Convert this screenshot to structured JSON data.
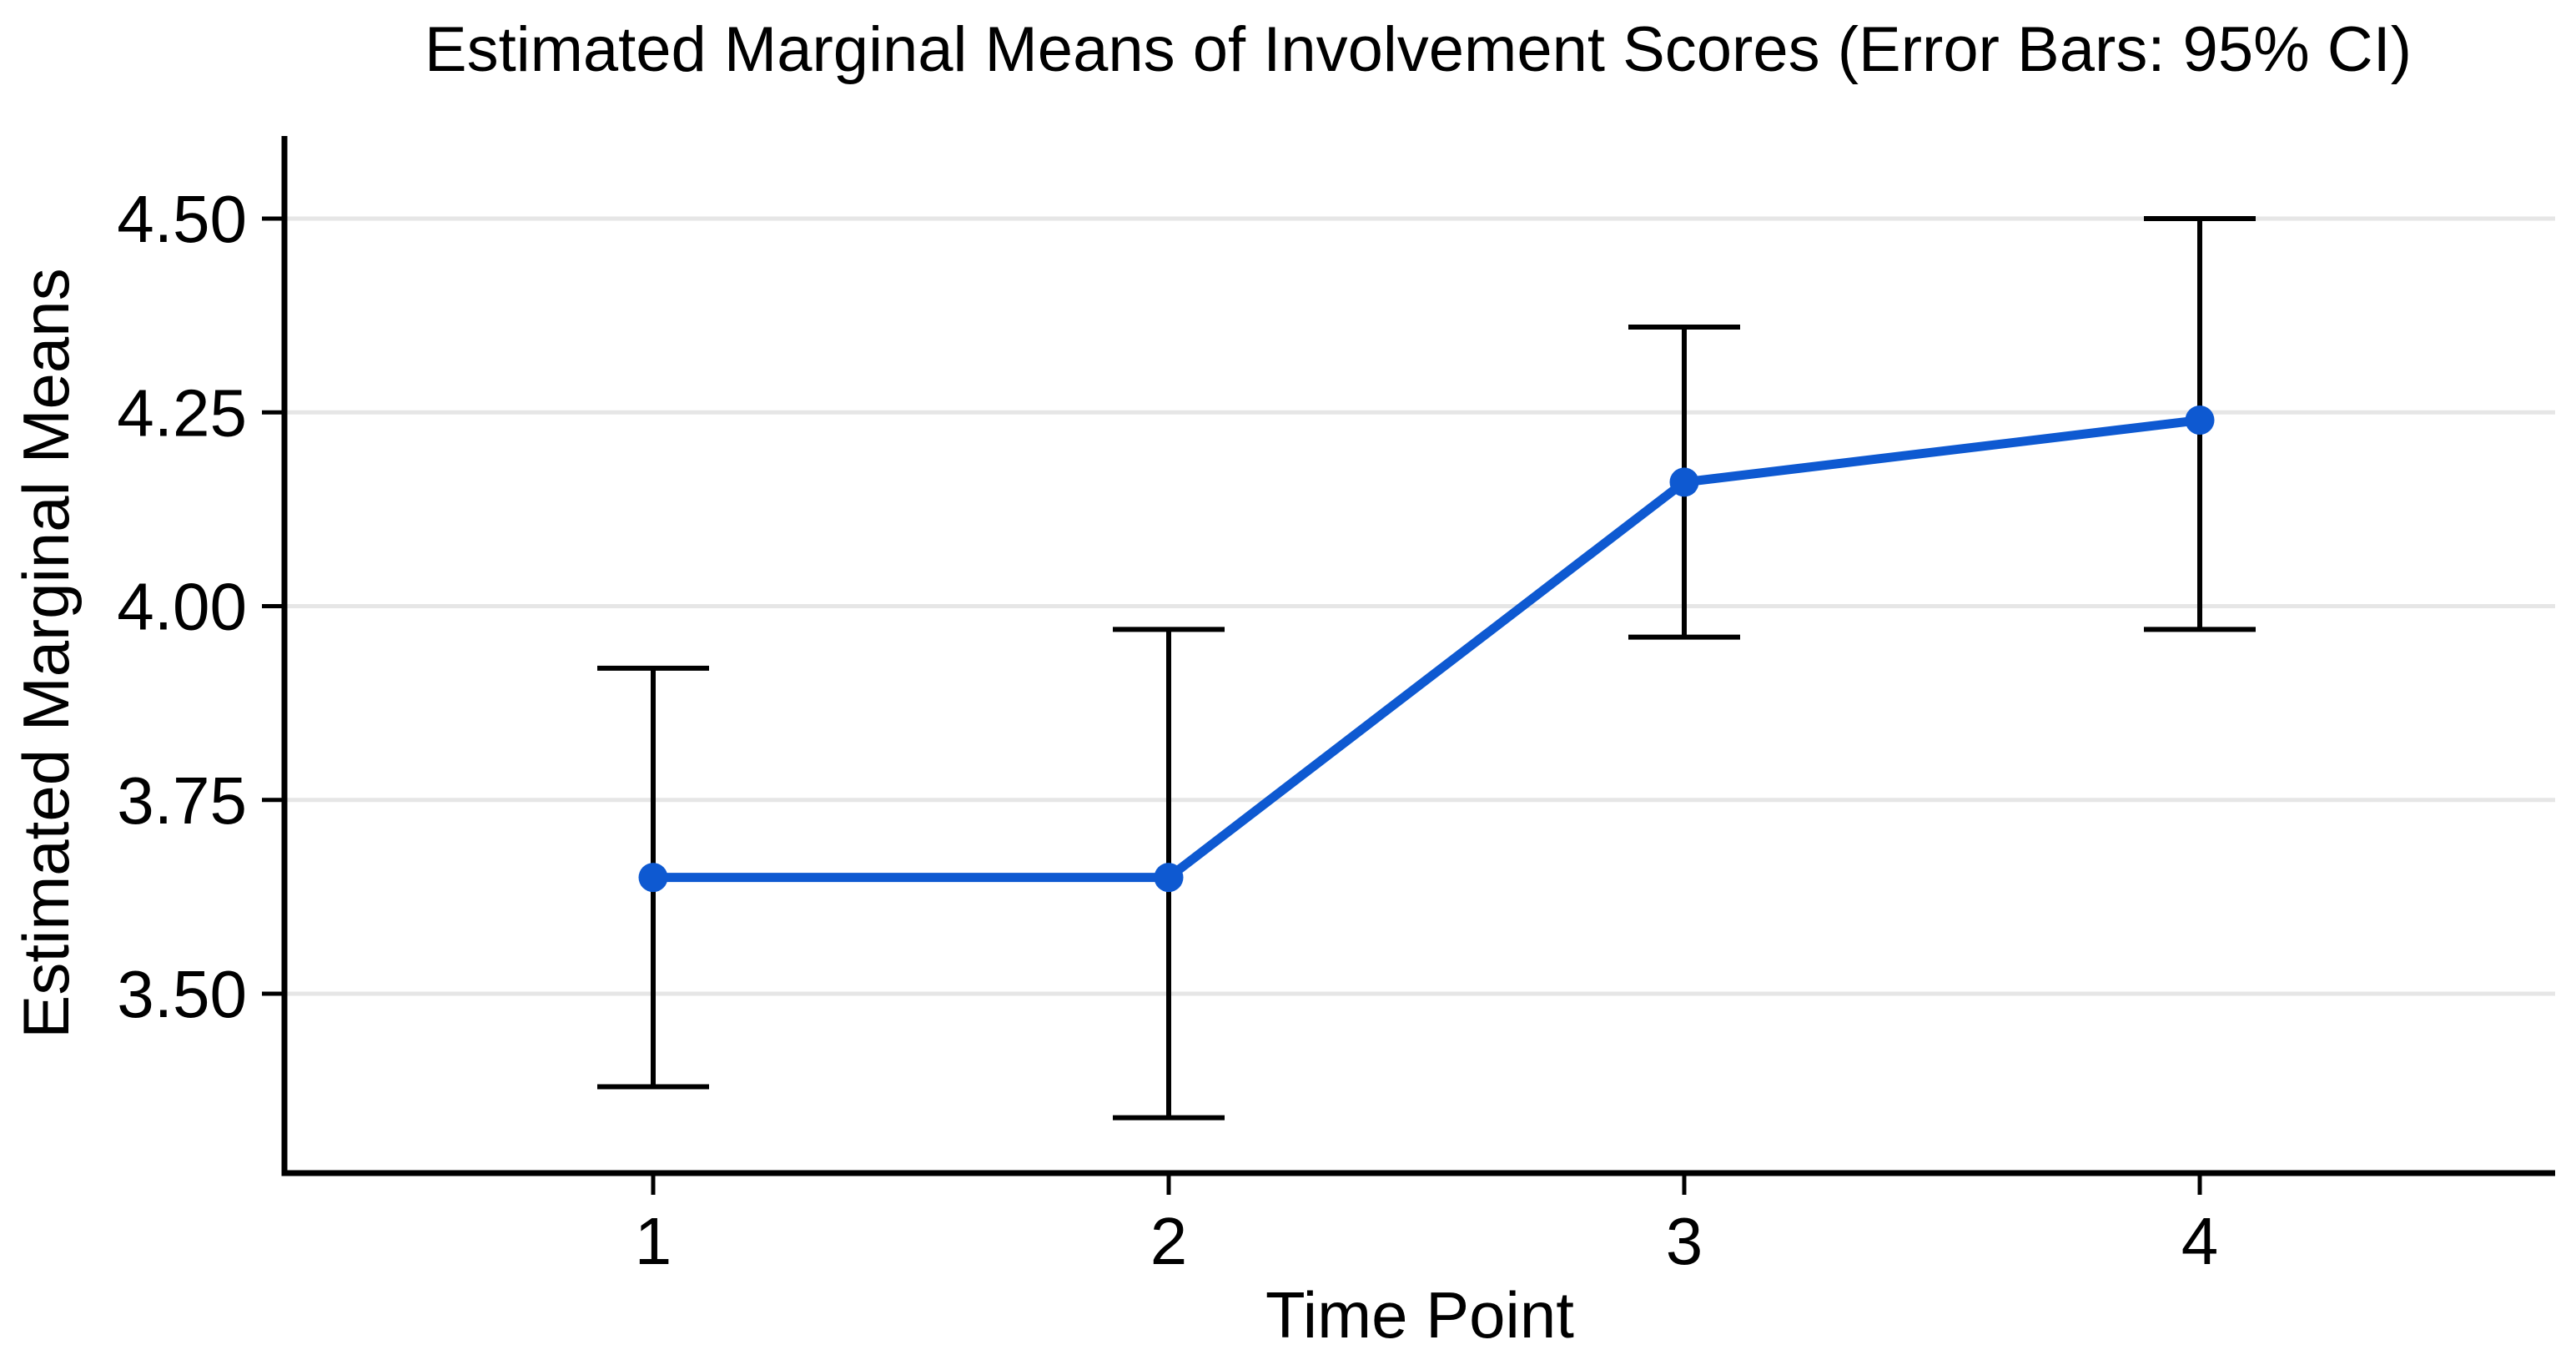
{
  "chart_data": {
    "type": "line",
    "title": "Estimated Marginal Means of Involvement Scores (Error Bars: 95% CI)",
    "xlabel": "Time Point",
    "ylabel": "Estimated Marginal Means",
    "categories": [
      "1",
      "2",
      "3",
      "4"
    ],
    "series": [
      {
        "name": "Estimated Marginal Means",
        "values": [
          3.65,
          3.65,
          4.16,
          4.24
        ],
        "ci_low": [
          3.38,
          3.34,
          3.96,
          3.97
        ],
        "ci_high": [
          3.92,
          3.97,
          4.36,
          4.5
        ]
      }
    ],
    "error_bars": "95% CI",
    "y_ticks": [
      "3.50",
      "3.75",
      "4.00",
      "4.25",
      "4.50"
    ],
    "ylim": [
      3.27,
      4.61
    ],
    "grid": "horizontal",
    "legend": "none",
    "marker": "circle",
    "colors": {
      "line": "#0e59d1",
      "marker": "#0e59d1",
      "error_bar": "#000000",
      "grid": "#e6e6e6",
      "axis": "#000000",
      "text": "#000000"
    }
  }
}
